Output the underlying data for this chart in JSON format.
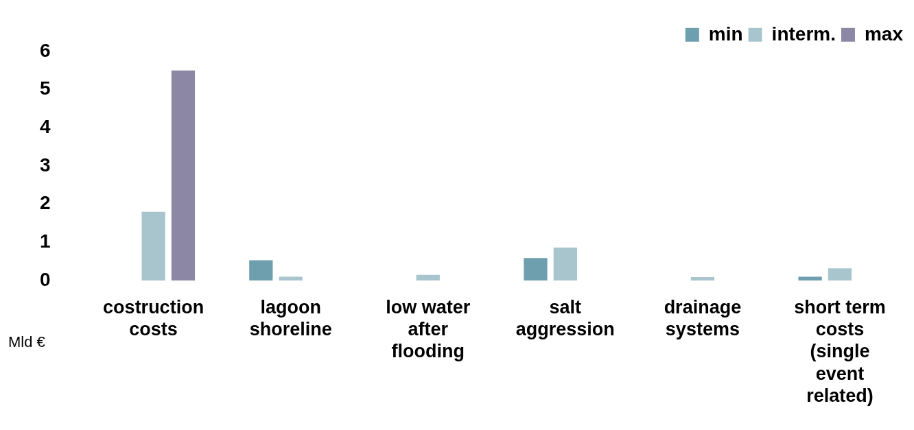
{
  "chart_data": {
    "type": "bar",
    "ylabel": "Mld €",
    "categories": [
      "costruction costs",
      "lagoon shoreline",
      "low water after flooding",
      "salt aggression",
      "drainage systems",
      "short term costs (single event related)"
    ],
    "series": [
      {
        "name": "min",
        "color": "#6e9fae",
        "values": [
          null,
          0.53,
          null,
          0.59,
          null,
          0.1
        ]
      },
      {
        "name": "interm.",
        "color": "#a8c5ce",
        "values": [
          1.8,
          0.1,
          0.15,
          0.86,
          0.09,
          0.32
        ]
      },
      {
        "name": "max",
        "color": "#8c87a4",
        "values": [
          5.5,
          null,
          null,
          null,
          null,
          null
        ]
      }
    ],
    "ylim": [
      0,
      6
    ],
    "yticks": [
      0,
      1,
      2,
      3,
      4,
      5,
      6
    ],
    "grid": false,
    "legend": "top right"
  }
}
